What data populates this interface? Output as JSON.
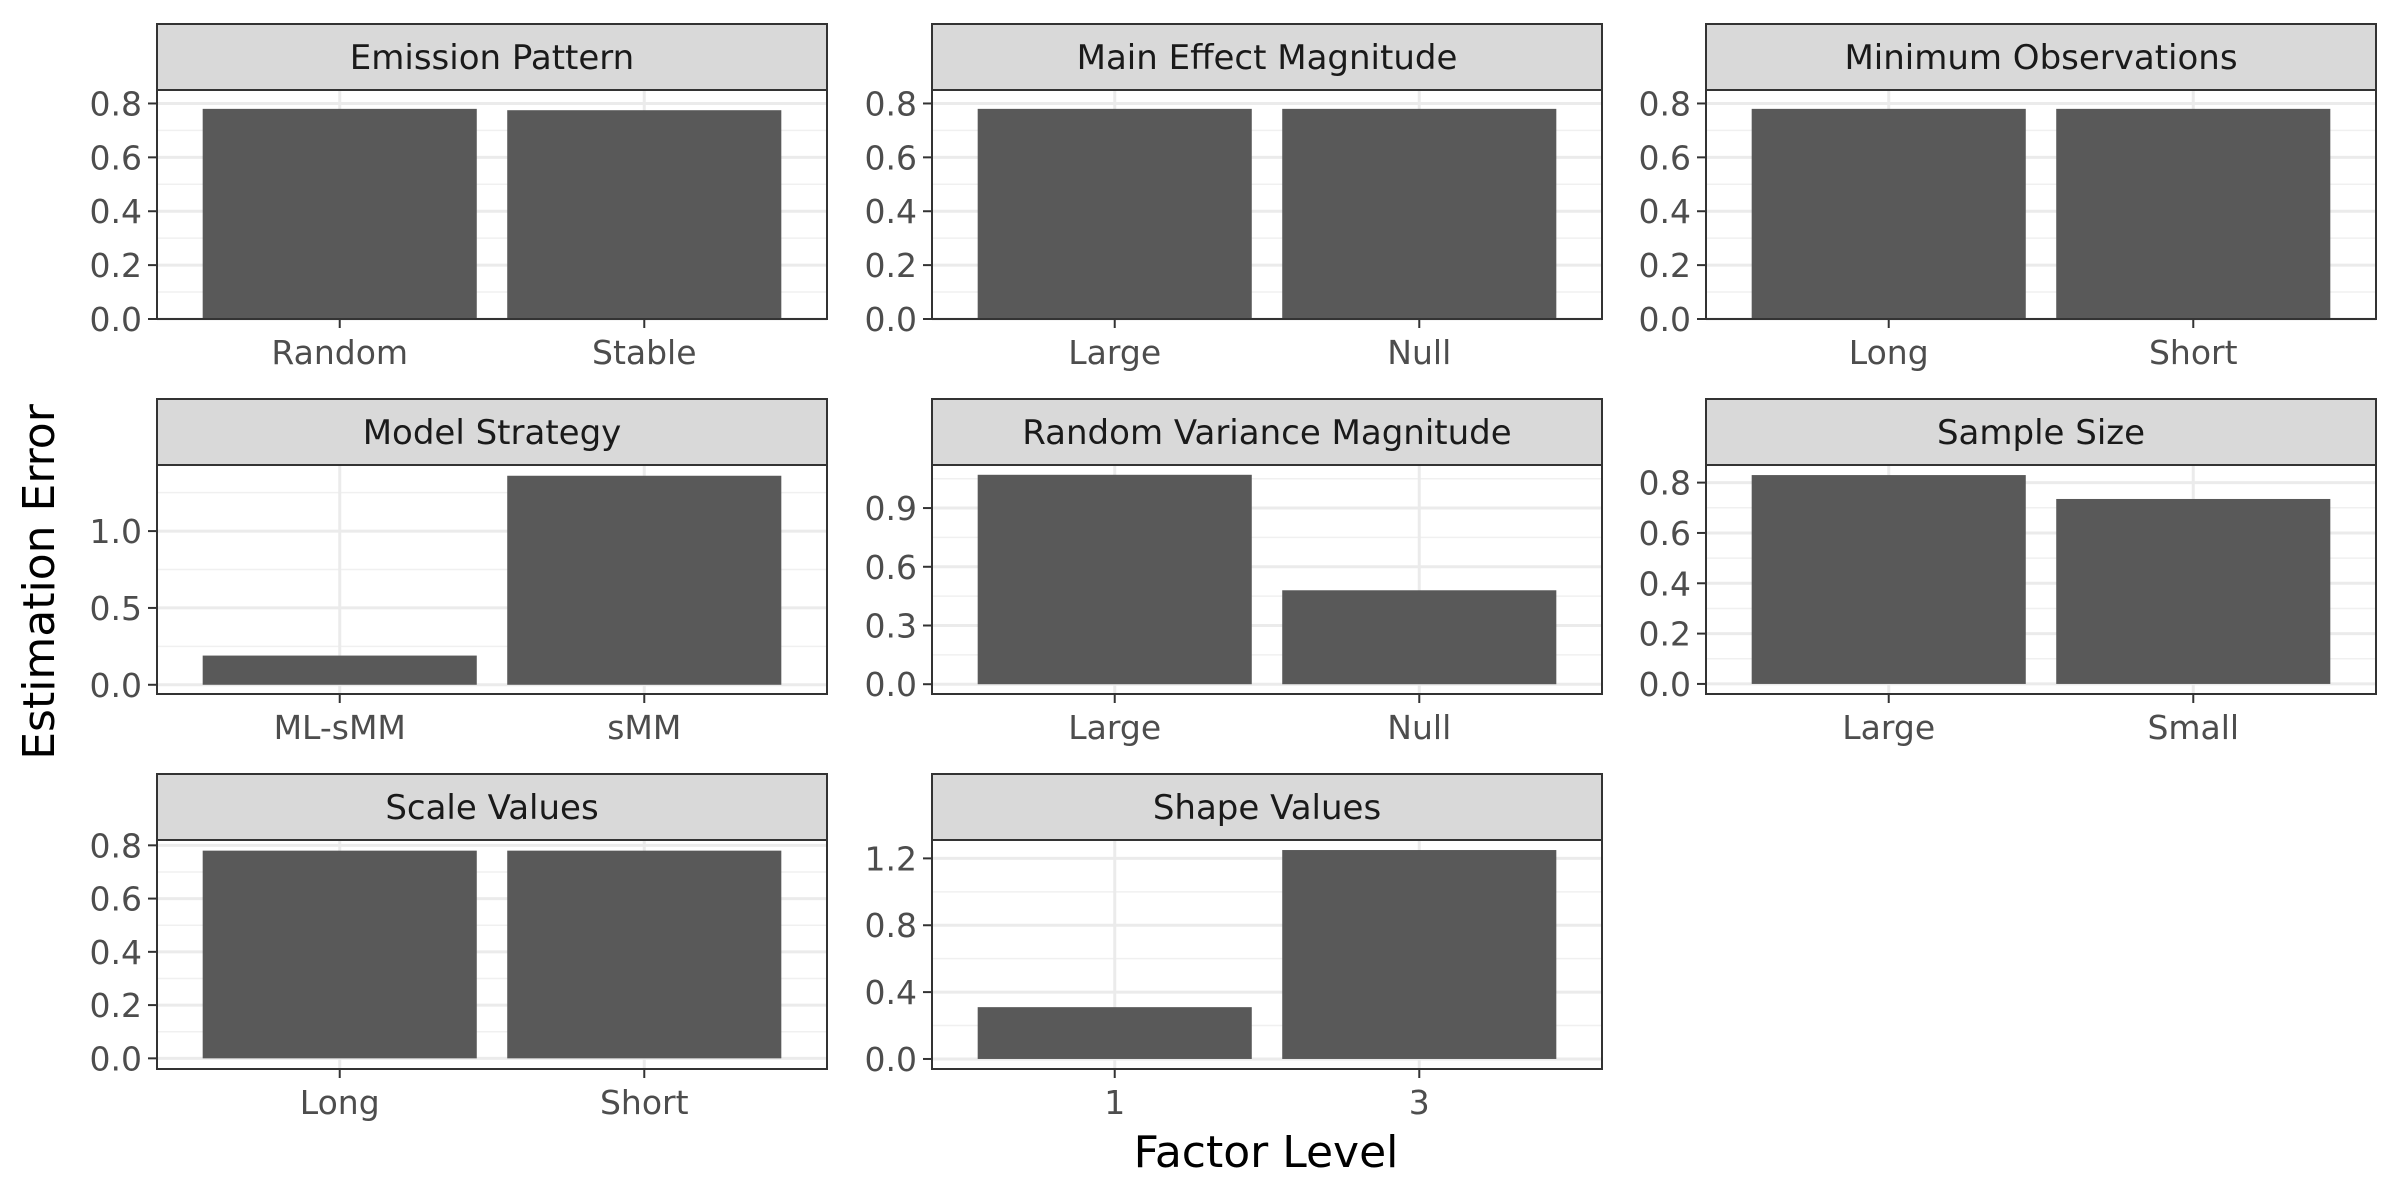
{
  "chart_data": {
    "type": "bar",
    "layout": "facet-grid",
    "xlabel": "Factor Level",
    "ylabel": "Estimation Error",
    "grid": true,
    "bar_color": "#595959",
    "strip_color": "#d9d9d9",
    "panels": [
      {
        "title": "Emission Pattern",
        "categories": [
          "Random",
          "Stable"
        ],
        "values": [
          0.78,
          0.775
        ],
        "ylim": [
          0,
          0.85
        ],
        "yticks": [
          0.0,
          0.2,
          0.4,
          0.6,
          0.8
        ],
        "ytick_labels": [
          "0.0",
          "0.2",
          "0.4",
          "0.6",
          "0.8"
        ]
      },
      {
        "title": "Main Effect Magnitude",
        "categories": [
          "Large",
          "Null"
        ],
        "values": [
          0.78,
          0.78
        ],
        "ylim": [
          0,
          0.85
        ],
        "yticks": [
          0.0,
          0.2,
          0.4,
          0.6,
          0.8
        ],
        "ytick_labels": [
          "0.0",
          "0.2",
          "0.4",
          "0.6",
          "0.8"
        ]
      },
      {
        "title": "Minimum Observations",
        "categories": [
          "Long",
          "Short"
        ],
        "values": [
          0.78,
          0.78
        ],
        "ylim": [
          0,
          0.85
        ],
        "yticks": [
          0.0,
          0.2,
          0.4,
          0.6,
          0.8
        ],
        "ytick_labels": [
          "0.0",
          "0.2",
          "0.4",
          "0.6",
          "0.8"
        ]
      },
      {
        "title": "Model Strategy",
        "categories": [
          "ML-sMM",
          "sMM"
        ],
        "values": [
          0.19,
          1.36
        ],
        "ylim": [
          -0.06,
          1.43
        ],
        "yticks": [
          0.0,
          0.5,
          1.0
        ],
        "ytick_labels": [
          "0.0",
          "0.5",
          "1.0"
        ]
      },
      {
        "title": "Random Variance Magnitude",
        "categories": [
          "Large",
          "Null"
        ],
        "values": [
          1.07,
          0.48
        ],
        "ylim": [
          -0.05,
          1.12
        ],
        "yticks": [
          0.0,
          0.3,
          0.6,
          0.9
        ],
        "ytick_labels": [
          "0.0",
          "0.3",
          "0.6",
          "0.9"
        ]
      },
      {
        "title": "Sample Size",
        "categories": [
          "Large",
          "Small"
        ],
        "values": [
          0.83,
          0.735
        ],
        "ylim": [
          -0.04,
          0.87
        ],
        "yticks": [
          0.0,
          0.2,
          0.4,
          0.6,
          0.8
        ],
        "ytick_labels": [
          "0.0",
          "0.2",
          "0.4",
          "0.6",
          "0.8"
        ]
      },
      {
        "title": "Scale Values",
        "categories": [
          "Long",
          "Short"
        ],
        "values": [
          0.78,
          0.78
        ],
        "ylim": [
          -0.04,
          0.82
        ],
        "yticks": [
          0.0,
          0.2,
          0.4,
          0.6,
          0.8
        ],
        "ytick_labels": [
          "0.0",
          "0.2",
          "0.4",
          "0.6",
          "0.8"
        ]
      },
      {
        "title": "Shape Values",
        "categories": [
          "1",
          "3"
        ],
        "values": [
          0.31,
          1.25
        ],
        "ylim": [
          -0.06,
          1.31
        ],
        "yticks": [
          0.0,
          0.4,
          0.8,
          1.2
        ],
        "ytick_labels": [
          "0.0",
          "0.4",
          "0.8",
          "1.2"
        ]
      }
    ]
  }
}
